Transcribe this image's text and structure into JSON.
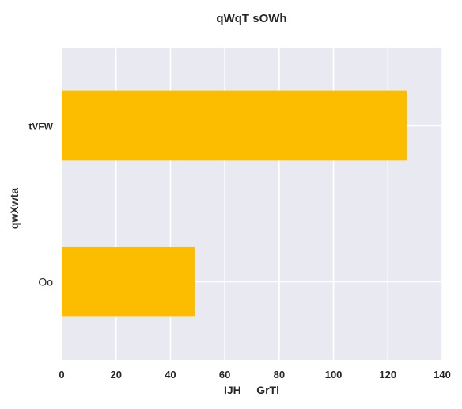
{
  "chart_data": {
    "type": "bar",
    "orientation": "horizontal",
    "title": "qWqT sOWh",
    "xlabel": "IJH     GrTl",
    "ylabel": "qwXwta",
    "categories": [
      "tVFW",
      "Oo"
    ],
    "values": [
      127,
      49
    ],
    "xlim": [
      0,
      140
    ],
    "xticks": [
      0,
      20,
      40,
      60,
      80,
      100,
      120,
      140
    ],
    "grid": true,
    "colors": {
      "bar": "#fcbd00",
      "plot_background": "#e9e9f1",
      "grid": "#ffffff",
      "text": "#262626"
    }
  }
}
